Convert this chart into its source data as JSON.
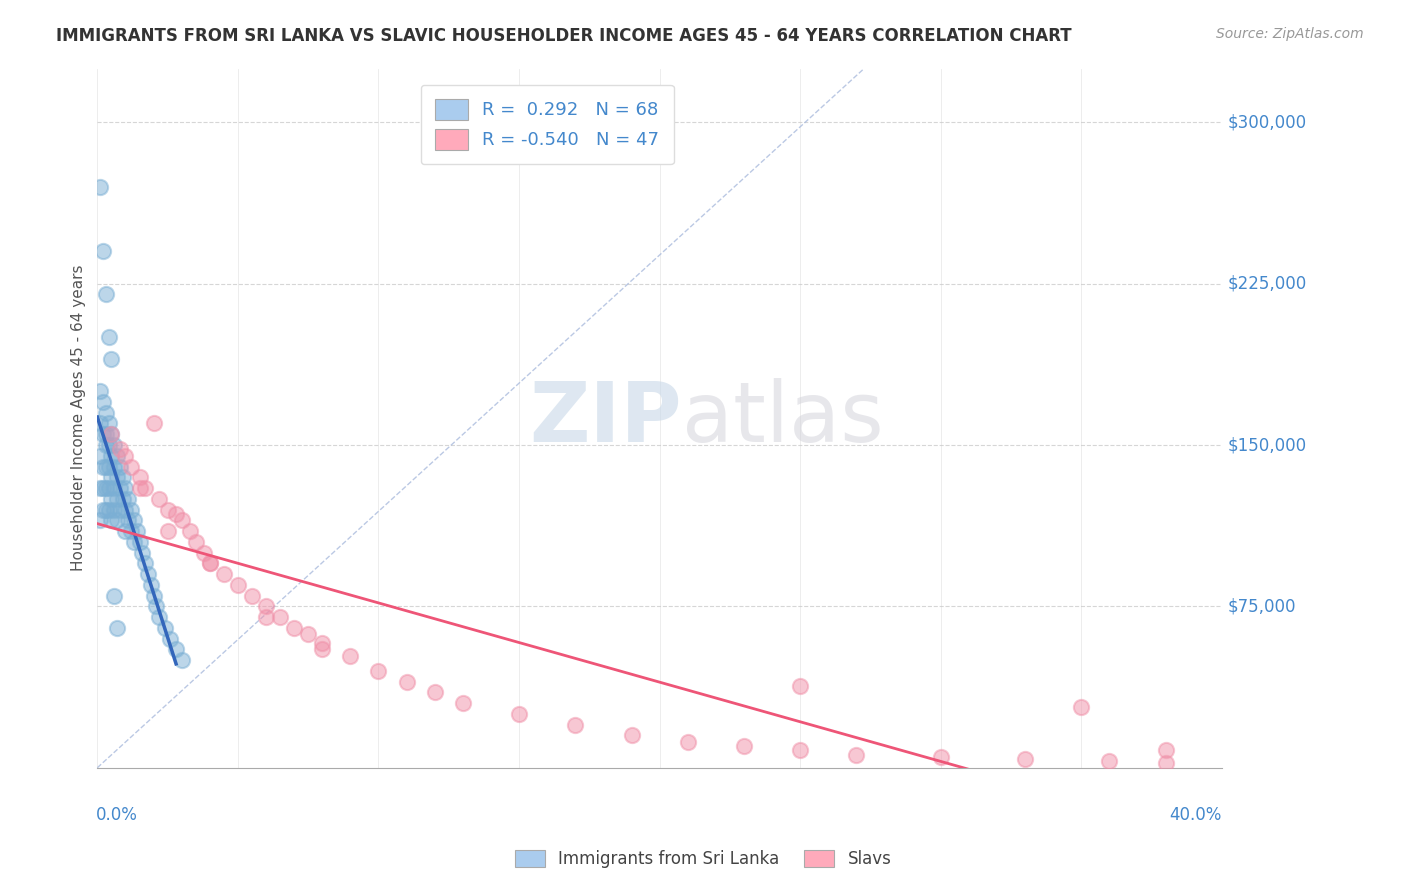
{
  "title": "IMMIGRANTS FROM SRI LANKA VS SLAVIC HOUSEHOLDER INCOME AGES 45 - 64 YEARS CORRELATION CHART",
  "source": "Source: ZipAtlas.com",
  "ylabel": "Householder Income Ages 45 - 64 years",
  "right_ytick_values": [
    75000,
    150000,
    225000,
    300000
  ],
  "right_ytick_labels": [
    "$75,000",
    "$150,000",
    "$225,000",
    "$300,000"
  ],
  "xmin": 0.0,
  "xmax": 0.4,
  "ymin": 0,
  "ymax": 325000,
  "blue_R": 0.292,
  "blue_N": 68,
  "pink_R": -0.54,
  "pink_N": 47,
  "blue_dot_color": "#7bafd4",
  "pink_dot_color": "#f090a8",
  "blue_line_color": "#3366bb",
  "pink_line_color": "#ee5577",
  "blue_legend_color": "#aaccee",
  "pink_legend_color": "#ffaabb",
  "legend_label_blue": "Immigrants from Sri Lanka",
  "legend_label_pink": "Slavs",
  "watermark_zip": "ZIP",
  "watermark_atlas": "atlas",
  "background_color": "#ffffff",
  "grid_color": "#cccccc",
  "title_color": "#333333",
  "axis_label_color": "#555555",
  "tick_color": "#4488cc",
  "ref_line_color": "#aabbdd",
  "dot_size": 120,
  "dot_alpha": 0.5,
  "blue_x": [
    0.001,
    0.001,
    0.001,
    0.001,
    0.001,
    0.002,
    0.002,
    0.002,
    0.002,
    0.002,
    0.003,
    0.003,
    0.003,
    0.003,
    0.003,
    0.003,
    0.004,
    0.004,
    0.004,
    0.004,
    0.004,
    0.005,
    0.005,
    0.005,
    0.005,
    0.005,
    0.006,
    0.006,
    0.006,
    0.006,
    0.007,
    0.007,
    0.007,
    0.007,
    0.008,
    0.008,
    0.008,
    0.009,
    0.009,
    0.01,
    0.01,
    0.01,
    0.011,
    0.011,
    0.012,
    0.012,
    0.013,
    0.013,
    0.014,
    0.015,
    0.016,
    0.017,
    0.018,
    0.019,
    0.02,
    0.021,
    0.022,
    0.024,
    0.026,
    0.028,
    0.03,
    0.001,
    0.002,
    0.003,
    0.004,
    0.005,
    0.006,
    0.007
  ],
  "blue_y": [
    175000,
    160000,
    145000,
    130000,
    115000,
    170000,
    155000,
    140000,
    130000,
    120000,
    165000,
    155000,
    150000,
    140000,
    130000,
    120000,
    160000,
    150000,
    140000,
    130000,
    120000,
    155000,
    145000,
    135000,
    125000,
    115000,
    150000,
    140000,
    130000,
    120000,
    145000,
    135000,
    125000,
    115000,
    140000,
    130000,
    120000,
    135000,
    125000,
    130000,
    120000,
    110000,
    125000,
    115000,
    120000,
    110000,
    115000,
    105000,
    110000,
    105000,
    100000,
    95000,
    90000,
    85000,
    80000,
    75000,
    70000,
    65000,
    60000,
    55000,
    50000,
    270000,
    240000,
    220000,
    200000,
    190000,
    80000,
    65000
  ],
  "pink_x": [
    0.005,
    0.008,
    0.01,
    0.012,
    0.015,
    0.017,
    0.02,
    0.022,
    0.025,
    0.028,
    0.03,
    0.033,
    0.035,
    0.038,
    0.04,
    0.045,
    0.05,
    0.055,
    0.06,
    0.065,
    0.07,
    0.075,
    0.08,
    0.09,
    0.1,
    0.11,
    0.12,
    0.13,
    0.15,
    0.17,
    0.19,
    0.21,
    0.23,
    0.25,
    0.27,
    0.3,
    0.33,
    0.36,
    0.38,
    0.015,
    0.025,
    0.04,
    0.06,
    0.08,
    0.25,
    0.35,
    0.38
  ],
  "pink_y": [
    155000,
    148000,
    145000,
    140000,
    135000,
    130000,
    160000,
    125000,
    120000,
    118000,
    115000,
    110000,
    105000,
    100000,
    95000,
    90000,
    85000,
    80000,
    75000,
    70000,
    65000,
    62000,
    58000,
    52000,
    45000,
    40000,
    35000,
    30000,
    25000,
    20000,
    15000,
    12000,
    10000,
    8000,
    6000,
    5000,
    4000,
    3000,
    2000,
    130000,
    110000,
    95000,
    70000,
    55000,
    38000,
    28000,
    8000
  ]
}
